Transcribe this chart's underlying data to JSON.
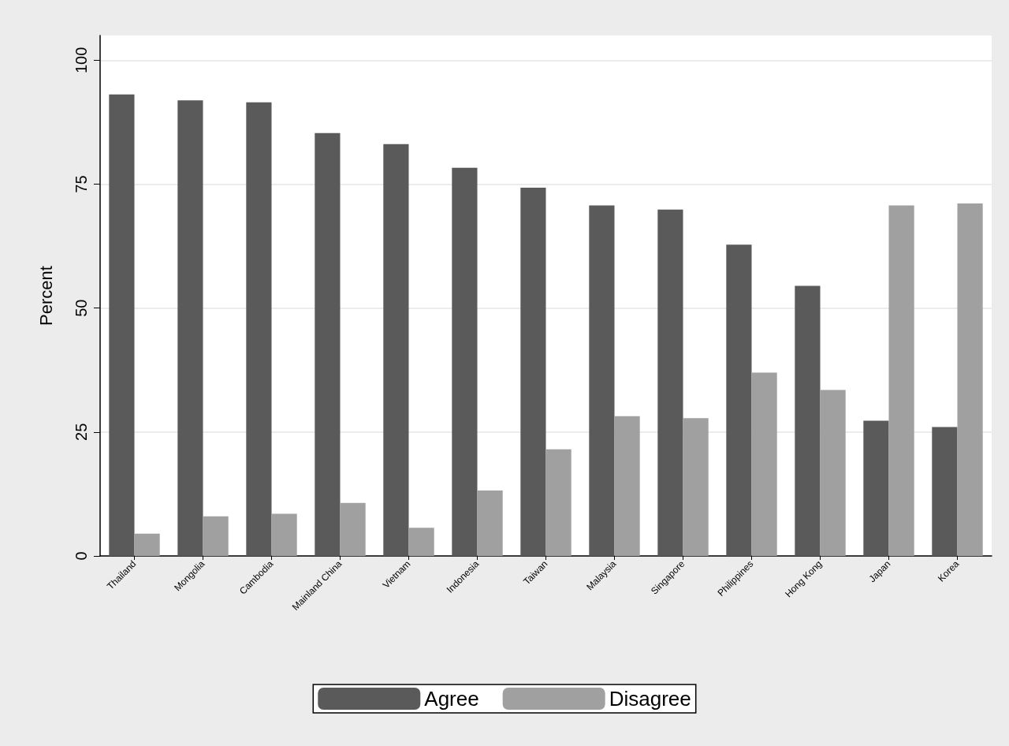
{
  "chart_data": {
    "type": "bar",
    "ylabel": "Percent",
    "categories": [
      "Thailand",
      "Mongolia",
      "Cambodia",
      "Mainland China",
      "Vietnam",
      "Indonesia",
      "Taiwan",
      "Malaysia",
      "Singapore",
      "Philippines",
      "Hong Kong",
      "Japan",
      "Korea"
    ],
    "series": [
      {
        "name": "Agree",
        "color": "#5a5a5a",
        "values": [
          93.1,
          91.9,
          91.5,
          85.3,
          83.1,
          78.3,
          74.3,
          70.7,
          69.9,
          62.8,
          54.5,
          27.3,
          26.0
        ]
      },
      {
        "name": "Disagree",
        "color": "#a0a0a0",
        "values": [
          4.5,
          8.0,
          8.5,
          10.7,
          5.7,
          13.2,
          21.5,
          28.2,
          27.8,
          37.0,
          33.5,
          70.7,
          71.1
        ]
      }
    ],
    "ylim": [
      0,
      105
    ],
    "yticks": [
      0,
      25,
      50,
      75,
      100
    ],
    "grid": "y",
    "legend": "bottom"
  }
}
